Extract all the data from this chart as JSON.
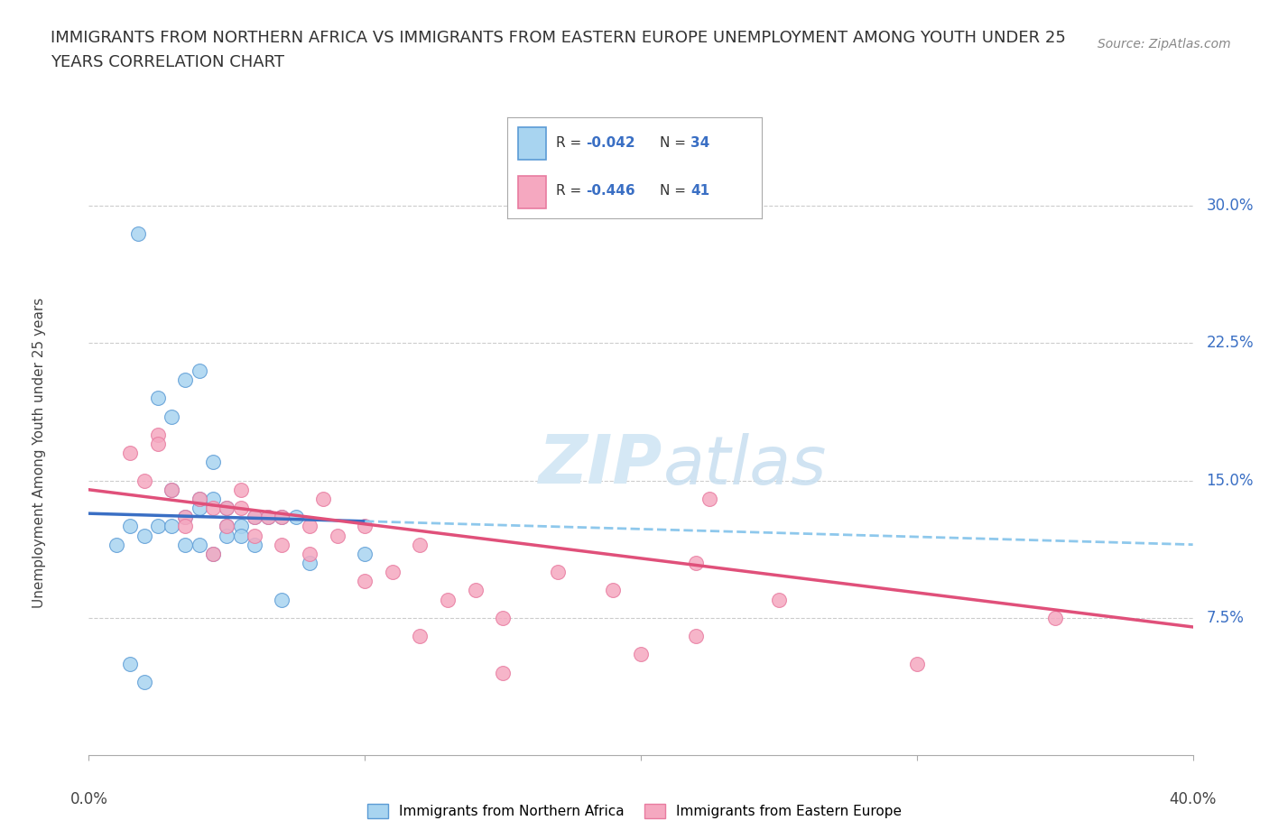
{
  "title_line1": "IMMIGRANTS FROM NORTHERN AFRICA VS IMMIGRANTS FROM EASTERN EUROPE UNEMPLOYMENT AMONG YOUTH UNDER 25",
  "title_line2": "YEARS CORRELATION CHART",
  "source": "Source: ZipAtlas.com",
  "ylabel": "Unemployment Among Youth under 25 years",
  "ytick_labels": [
    "7.5%",
    "15.0%",
    "22.5%",
    "30.0%"
  ],
  "ytick_values": [
    7.5,
    15.0,
    22.5,
    30.0
  ],
  "xlim": [
    0.0,
    40.0
  ],
  "ylim": [
    0.0,
    33.0
  ],
  "legend_label1": "Immigrants from Northern Africa",
  "legend_label2": "Immigrants from Eastern Europe",
  "r1": "-0.042",
  "n1": "34",
  "r2": "-0.446",
  "n2": "41",
  "color_blue": "#A8D4F0",
  "color_blue_dark": "#5B9BD5",
  "color_blue_line": "#3A6FC4",
  "color_pink": "#F5A8C0",
  "color_pink_dark": "#E87BA0",
  "color_pink_line": "#E0507A",
  "color_dashed": "#8EC8EC",
  "watermark_color": "#D5E8F5",
  "blue_line_start_y": 13.2,
  "blue_line_end_y": 11.5,
  "pink_line_start_y": 14.5,
  "pink_line_end_y": 7.0,
  "blue_points_x": [
    1.0,
    2.5,
    3.0,
    3.5,
    4.0,
    4.0,
    4.5,
    5.0,
    5.0,
    5.5,
    6.0,
    6.5,
    7.0,
    7.5,
    8.0,
    3.0,
    3.5,
    4.0,
    4.5,
    1.5,
    2.0,
    2.5,
    3.0,
    3.5,
    4.0,
    4.5,
    5.0,
    5.5,
    6.0,
    7.0,
    1.5,
    2.0,
    10.0,
    1.8
  ],
  "blue_points_y": [
    11.5,
    19.5,
    14.5,
    13.0,
    13.5,
    14.0,
    14.0,
    13.5,
    12.5,
    12.5,
    13.0,
    13.0,
    13.0,
    13.0,
    10.5,
    18.5,
    20.5,
    21.0,
    16.0,
    12.5,
    12.0,
    12.5,
    12.5,
    11.5,
    11.5,
    11.0,
    12.0,
    12.0,
    11.5,
    8.5,
    5.0,
    4.0,
    11.0,
    28.5
  ],
  "pink_points_x": [
    1.5,
    2.0,
    2.5,
    3.0,
    3.5,
    4.0,
    4.5,
    5.0,
    5.5,
    5.5,
    6.0,
    6.5,
    7.0,
    8.0,
    8.5,
    9.0,
    10.0,
    11.0,
    12.0,
    13.0,
    14.0,
    15.0,
    17.0,
    19.0,
    22.0,
    22.0,
    25.0,
    30.0,
    35.0,
    2.5,
    3.5,
    4.5,
    5.0,
    6.0,
    7.0,
    8.0,
    10.0,
    12.0,
    15.0,
    20.0,
    22.5
  ],
  "pink_points_y": [
    16.5,
    15.0,
    17.5,
    14.5,
    13.0,
    14.0,
    13.5,
    13.5,
    13.5,
    14.5,
    13.0,
    13.0,
    13.0,
    12.5,
    14.0,
    12.0,
    12.5,
    10.0,
    11.5,
    8.5,
    9.0,
    7.5,
    10.0,
    9.0,
    10.5,
    6.5,
    8.5,
    5.0,
    7.5,
    17.0,
    12.5,
    11.0,
    12.5,
    12.0,
    11.5,
    11.0,
    9.5,
    6.5,
    4.5,
    5.5,
    14.0
  ]
}
